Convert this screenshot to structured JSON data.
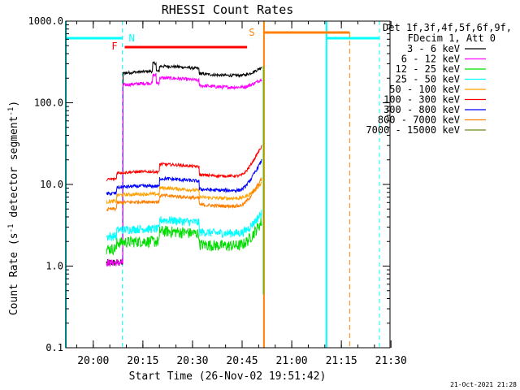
{
  "chart_data": {
    "type": "line",
    "title": "RHESSI Count Rates",
    "xlabel": "Start Time (26-Nov-02 19:51:42)",
    "ylabel_main": "Count Rate (s",
    "ylabel_sup": "-1",
    "ylabel_rest": " detector segment",
    "ylabel_sup2": "-1",
    "ylabel_end": ")",
    "y_scale": "log",
    "ylim": [
      0.1,
      1000.0
    ],
    "y_ticks": [
      {
        "value": 0.1,
        "label": "0.1"
      },
      {
        "value": 1.0,
        "label": "1.0"
      },
      {
        "value": 10.0,
        "label": "10.0"
      },
      {
        "value": 100.0,
        "label": "100.0"
      },
      {
        "value": 1000.0,
        "label": "1000.0"
      }
    ],
    "xlim_minutes_after_1951_42": [
      0,
      98
    ],
    "x_ticks": [
      {
        "time": "20:00",
        "label": "20:00"
      },
      {
        "time": "20:15",
        "label": "20:15"
      },
      {
        "time": "20:30",
        "label": "20:30"
      },
      {
        "time": "20:45",
        "label": "20:45"
      },
      {
        "time": "21:00",
        "label": "21:00"
      },
      {
        "time": "21:15",
        "label": "21:15"
      },
      {
        "time": "21:30",
        "label": "21:30"
      }
    ],
    "legend": {
      "header1": "Det 1f,3f,4f,5f,6f,9f,",
      "header2": "FDecim 1, Att 0",
      "placement": "right"
    },
    "series": [
      {
        "name": "3 - 6 keV",
        "color": "#000000",
        "start": "20:09",
        "end": "20:51",
        "base": 230,
        "end_value": 280,
        "noise": 0.04,
        "bump": 1.15,
        "pre": 1.1,
        "pre_start": "20:04"
      },
      {
        "name": "6 - 12 keV",
        "color": "#ff00ff",
        "start": "20:09",
        "end": "20:51",
        "base": 165,
        "end_value": 200,
        "noise": 0.05,
        "bump": 1.15,
        "pre": 1.1,
        "pre_start": "20:04"
      },
      {
        "name": "12 - 25 keV",
        "color": "#00dd00",
        "start": "20:04",
        "end": "20:51",
        "base": 1.9,
        "end_value": 3.6,
        "noise": 0.16,
        "bump": 1.35,
        "pre": 1.3
      },
      {
        "name": "25 - 50 keV",
        "color": "#00ffff",
        "start": "20:04",
        "end": "20:51",
        "base": 2.7,
        "end_value": 4.6,
        "noise": 0.12,
        "bump": 1.3,
        "pre": 2.5
      },
      {
        "name": "50 - 100 keV",
        "color": "#ffa000",
        "start": "20:04",
        "end": "20:51",
        "base": 7.2,
        "end_value": 10.5,
        "noise": 0.05,
        "bump": 1.2,
        "pre": 7.0
      },
      {
        "name": "100 - 300 keV",
        "color": "#ff0000",
        "start": "20:04",
        "end": "20:51",
        "base": 13.5,
        "end_value": 30,
        "noise": 0.04,
        "bump": 1.25,
        "pre": 13.0
      },
      {
        "name": "300 - 800 keV",
        "color": "#0000ff",
        "start": "20:04",
        "end": "20:51",
        "base": 9.0,
        "end_value": 20,
        "noise": 0.05,
        "bump": 1.25,
        "pre": 8.5
      },
      {
        "name": "800 - 7000 keV",
        "color": "#ff7f00",
        "start": "20:04",
        "end": "20:51",
        "base": 5.8,
        "end_value": 12,
        "noise": 0.05,
        "bump": 1.2,
        "pre": 5.5
      },
      {
        "name": "7000 - 15000 keV",
        "color": "#6b8e23",
        "start": "20:04",
        "end": "20:51",
        "base": 0,
        "end_value": 0,
        "noise": 0,
        "bump": 1,
        "pre": 0
      }
    ],
    "flags": [
      {
        "label": "N",
        "color": "#00ffff",
        "label_time": "20:09.5"
      },
      {
        "label": "F",
        "color": "#ff0000",
        "label_time": "20:08.5"
      },
      {
        "label": "S",
        "color": "#ff8000",
        "label_time": "20:50.5"
      }
    ]
  },
  "footer": {
    "timestamp": "21-Oct-2021 21:28"
  }
}
